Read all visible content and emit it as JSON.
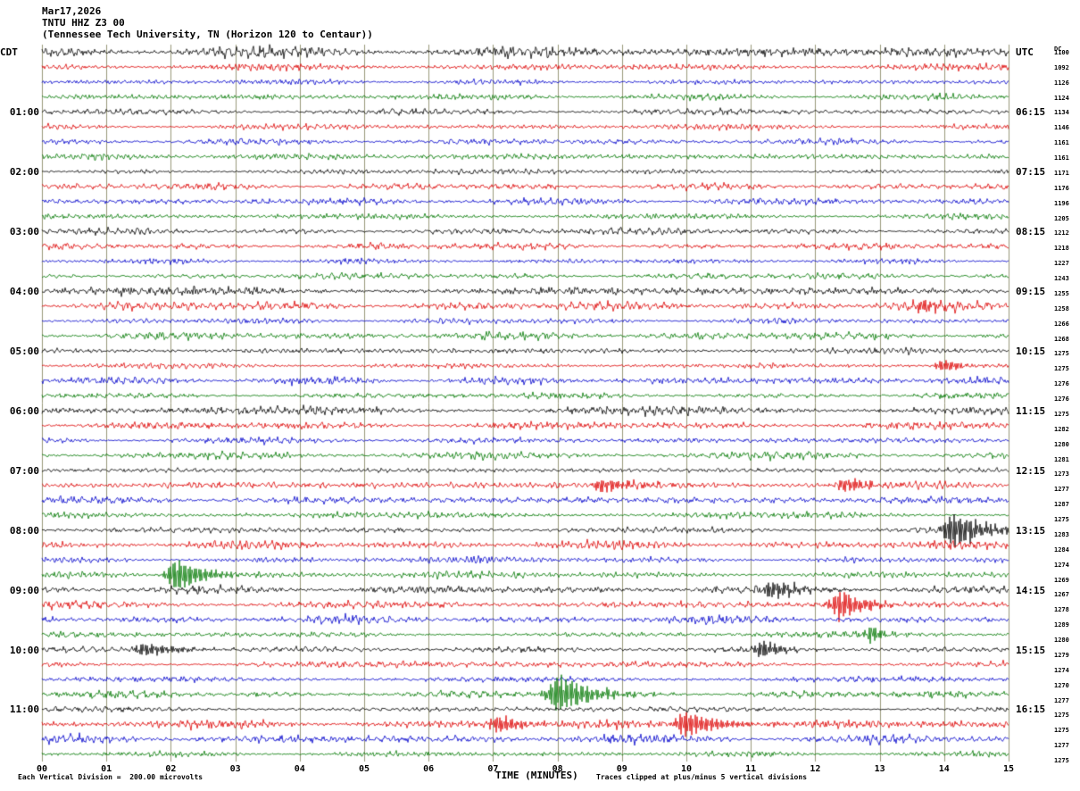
{
  "header": {
    "date": "Mar17,2026",
    "station": "TNTU HHZ Z3 00",
    "description": "(Tennessee Tech University, TN (Horizon 120 to Centaur))"
  },
  "axes": {
    "left_top_label": "CDT",
    "right_top_label": "UTC",
    "right_column_header": "DC",
    "left_hour_labels": [
      {
        "row": 4,
        "label": "01:00"
      },
      {
        "row": 8,
        "label": "02:00"
      },
      {
        "row": 12,
        "label": "03:00"
      },
      {
        "row": 16,
        "label": "04:00"
      },
      {
        "row": 20,
        "label": "05:00"
      },
      {
        "row": 24,
        "label": "06:00"
      },
      {
        "row": 28,
        "label": "07:00"
      },
      {
        "row": 32,
        "label": "08:00"
      },
      {
        "row": 36,
        "label": "09:00"
      },
      {
        "row": 40,
        "label": "10:00"
      },
      {
        "row": 44,
        "label": "11:00"
      }
    ],
    "right_hour_labels": [
      {
        "row": 4,
        "label": "06:15"
      },
      {
        "row": 8,
        "label": "07:15"
      },
      {
        "row": 12,
        "label": "08:15"
      },
      {
        "row": 16,
        "label": "09:15"
      },
      {
        "row": 20,
        "label": "10:15"
      },
      {
        "row": 24,
        "label": "11:15"
      },
      {
        "row": 28,
        "label": "12:15"
      },
      {
        "row": 32,
        "label": "13:15"
      },
      {
        "row": 36,
        "label": "14:15"
      },
      {
        "row": 40,
        "label": "15:15"
      },
      {
        "row": 44,
        "label": "16:15"
      }
    ],
    "right_column_values": [
      "1100",
      "1092",
      "1126",
      "1124",
      "1134",
      "1146",
      "1161",
      "1161",
      "1171",
      "1176",
      "1196",
      "1205",
      "1212",
      "1218",
      "1227",
      "1243",
      "1255",
      "1258",
      "1266",
      "1268",
      "1275",
      "1275",
      "1276",
      "1276",
      "1275",
      "1282",
      "1280",
      "1281",
      "1273",
      "1277",
      "1287",
      "1275",
      "1283",
      "1284",
      "1274",
      "1269",
      "1267",
      "1278",
      "1289",
      "1280",
      "1279",
      "1274",
      "1270",
      "1277",
      "1275",
      "1275",
      "1277",
      "1275"
    ],
    "x_ticks": [
      "00",
      "01",
      "02",
      "03",
      "04",
      "05",
      "06",
      "07",
      "08",
      "09",
      "10",
      "11",
      "12",
      "13",
      "14",
      "15"
    ],
    "x_axis_title": "TIME (MINUTES)"
  },
  "footer": {
    "left": "Each Vertical Division =  200.00 microvolts",
    "right": "Traces clipped at plus/minus 5 vertical divisions"
  },
  "chart_data": {
    "type": "line",
    "title": "TNTU HHZ Z3 00 helicorder (Tennessee Tech University, TN)",
    "rows": 48,
    "minutes_per_row": 15,
    "row_duration_label": "15 minutes per trace, 4 traces per hour, 00:00-12:00 CDT",
    "trace_colors": [
      "#000000",
      "#dd0000",
      "#0000cc",
      "#007700"
    ],
    "grid_color": "#99997a",
    "background": "#ffffff",
    "noise_amp_fraction_of_row": 0.21,
    "clip_divisions": 5,
    "seed": 42,
    "row_amp_overrides": {
      "0": 1.5
    },
    "events": [
      {
        "row": 17,
        "minute": 13.7,
        "amp": 0.35,
        "dur": 0.25
      },
      {
        "row": 21,
        "minute": 14.0,
        "amp": 0.45,
        "dur": 0.3
      },
      {
        "row": 29,
        "minute": 8.7,
        "amp": 0.5,
        "dur": 0.5
      },
      {
        "row": 29,
        "minute": 12.5,
        "amp": 0.5,
        "dur": 0.4
      },
      {
        "row": 32,
        "minute": 14.15,
        "amp": 1.4,
        "dur": 0.45
      },
      {
        "row": 35,
        "minute": 2.1,
        "amp": 1.3,
        "dur": 0.4
      },
      {
        "row": 36,
        "minute": 11.35,
        "amp": 0.7,
        "dur": 0.5
      },
      {
        "row": 37,
        "minute": 12.4,
        "amp": 1.2,
        "dur": 0.35
      },
      {
        "row": 39,
        "minute": 12.9,
        "amp": 0.6,
        "dur": 0.15
      },
      {
        "row": 40,
        "minute": 1.6,
        "amp": 0.5,
        "dur": 0.5
      },
      {
        "row": 40,
        "minute": 11.2,
        "amp": 0.6,
        "dur": 0.3
      },
      {
        "row": 43,
        "minute": 8.0,
        "amp": 1.5,
        "dur": 0.5
      },
      {
        "row": 45,
        "minute": 7.1,
        "amp": 0.7,
        "dur": 0.3
      },
      {
        "row": 45,
        "minute": 10.0,
        "amp": 1.0,
        "dur": 0.5
      }
    ]
  }
}
